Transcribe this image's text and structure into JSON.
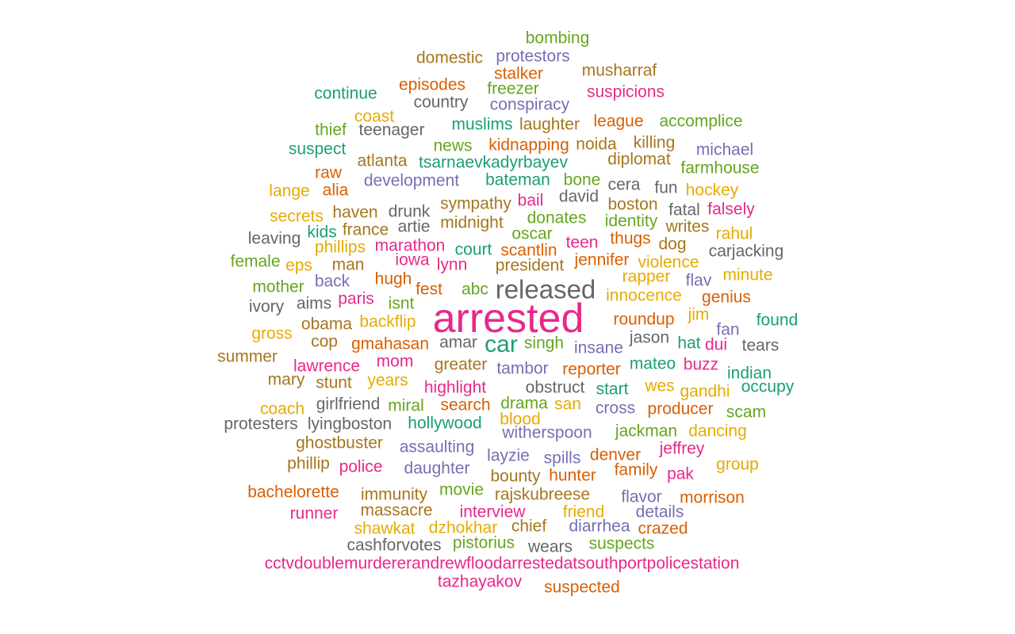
{
  "palette": {
    "teal": "#1b9e77",
    "orange": "#d95f02",
    "purple": "#7570b3",
    "magenta": "#e7298a",
    "green": "#66a61e",
    "mustard": "#e6ab02",
    "brown": "#a6761d",
    "gray": "#666666"
  },
  "words": [
    {
      "text": "arrested",
      "color": "magenta"
    },
    {
      "text": "released",
      "color": "gray"
    },
    {
      "text": "car",
      "color": "teal"
    },
    {
      "text": "bombing",
      "color": "green"
    },
    {
      "text": "domestic",
      "color": "brown"
    },
    {
      "text": "protestors",
      "color": "purple"
    },
    {
      "text": "musharraf",
      "color": "brown"
    },
    {
      "text": "stalker",
      "color": "orange"
    },
    {
      "text": "episodes",
      "color": "orange"
    },
    {
      "text": "freezer",
      "color": "green"
    },
    {
      "text": "suspicions",
      "color": "magenta"
    },
    {
      "text": "continue",
      "color": "teal"
    },
    {
      "text": "country",
      "color": "gray"
    },
    {
      "text": "conspiracy",
      "color": "purple"
    },
    {
      "text": "coast",
      "color": "mustard"
    },
    {
      "text": "league",
      "color": "orange"
    },
    {
      "text": "accomplice",
      "color": "green"
    },
    {
      "text": "thief",
      "color": "green"
    },
    {
      "text": "teenager",
      "color": "gray"
    },
    {
      "text": "muslims",
      "color": "teal"
    },
    {
      "text": "laughter",
      "color": "brown"
    },
    {
      "text": "suspect",
      "color": "teal"
    },
    {
      "text": "news",
      "color": "green"
    },
    {
      "text": "kidnapping",
      "color": "orange"
    },
    {
      "text": "noida",
      "color": "brown"
    },
    {
      "text": "killing",
      "color": "brown"
    },
    {
      "text": "michael",
      "color": "purple"
    },
    {
      "text": "raw",
      "color": "orange"
    },
    {
      "text": "atlanta",
      "color": "brown"
    },
    {
      "text": "tsarnaevkadyrbayev",
      "color": "teal"
    },
    {
      "text": "diplomat",
      "color": "brown"
    },
    {
      "text": "farmhouse",
      "color": "green"
    },
    {
      "text": "lange",
      "color": "mustard"
    },
    {
      "text": "alia",
      "color": "orange"
    },
    {
      "text": "development",
      "color": "purple"
    },
    {
      "text": "bateman",
      "color": "teal"
    },
    {
      "text": "bone",
      "color": "green"
    },
    {
      "text": "cera",
      "color": "gray"
    },
    {
      "text": "fun",
      "color": "gray"
    },
    {
      "text": "hockey",
      "color": "mustard"
    },
    {
      "text": "david",
      "color": "gray"
    },
    {
      "text": "secrets",
      "color": "mustard"
    },
    {
      "text": "haven",
      "color": "brown"
    },
    {
      "text": "drunk",
      "color": "gray"
    },
    {
      "text": "sympathy",
      "color": "brown"
    },
    {
      "text": "bail",
      "color": "magenta"
    },
    {
      "text": "boston",
      "color": "brown"
    },
    {
      "text": "fatal",
      "color": "gray"
    },
    {
      "text": "falsely",
      "color": "magenta"
    },
    {
      "text": "kids",
      "color": "teal"
    },
    {
      "text": "france",
      "color": "brown"
    },
    {
      "text": "artie",
      "color": "gray"
    },
    {
      "text": "midnight",
      "color": "brown"
    },
    {
      "text": "donates",
      "color": "green"
    },
    {
      "text": "identity",
      "color": "green"
    },
    {
      "text": "writes",
      "color": "brown"
    },
    {
      "text": "rahul",
      "color": "mustard"
    },
    {
      "text": "leaving",
      "color": "gray"
    },
    {
      "text": "oscar",
      "color": "green"
    },
    {
      "text": "thugs",
      "color": "orange"
    },
    {
      "text": "phillips",
      "color": "mustard"
    },
    {
      "text": "marathon",
      "color": "magenta"
    },
    {
      "text": "court",
      "color": "teal"
    },
    {
      "text": "scantlin",
      "color": "orange"
    },
    {
      "text": "teen",
      "color": "magenta"
    },
    {
      "text": "dog",
      "color": "brown"
    },
    {
      "text": "carjacking",
      "color": "gray"
    },
    {
      "text": "female",
      "color": "green"
    },
    {
      "text": "eps",
      "color": "mustard"
    },
    {
      "text": "man",
      "color": "brown"
    },
    {
      "text": "iowa",
      "color": "magenta"
    },
    {
      "text": "lynn",
      "color": "magenta"
    },
    {
      "text": "president",
      "color": "brown"
    },
    {
      "text": "jennifer",
      "color": "orange"
    },
    {
      "text": "violence",
      "color": "mustard"
    },
    {
      "text": "rapper",
      "color": "mustard"
    },
    {
      "text": "flav",
      "color": "purple"
    },
    {
      "text": "minute",
      "color": "mustard"
    },
    {
      "text": "mother",
      "color": "green"
    },
    {
      "text": "back",
      "color": "purple"
    },
    {
      "text": "hugh",
      "color": "orange"
    },
    {
      "text": "fest",
      "color": "orange"
    },
    {
      "text": "abc",
      "color": "green"
    },
    {
      "text": "innocence",
      "color": "mustard"
    },
    {
      "text": "genius",
      "color": "orange"
    },
    {
      "text": "ivory",
      "color": "gray"
    },
    {
      "text": "aims",
      "color": "gray"
    },
    {
      "text": "paris",
      "color": "magenta"
    },
    {
      "text": "isnt",
      "color": "green"
    },
    {
      "text": "jim",
      "color": "mustard"
    },
    {
      "text": "found",
      "color": "teal"
    },
    {
      "text": "roundup",
      "color": "orange"
    },
    {
      "text": "fan",
      "color": "purple"
    },
    {
      "text": "gross",
      "color": "mustard"
    },
    {
      "text": "obama",
      "color": "brown"
    },
    {
      "text": "backflip",
      "color": "mustard"
    },
    {
      "text": "jason",
      "color": "gray"
    },
    {
      "text": "cop",
      "color": "brown"
    },
    {
      "text": "gmahasan",
      "color": "orange"
    },
    {
      "text": "amar",
      "color": "gray"
    },
    {
      "text": "singh",
      "color": "green"
    },
    {
      "text": "insane",
      "color": "purple"
    },
    {
      "text": "hat",
      "color": "teal"
    },
    {
      "text": "dui",
      "color": "magenta"
    },
    {
      "text": "tears",
      "color": "gray"
    },
    {
      "text": "summer",
      "color": "brown"
    },
    {
      "text": "lawrence",
      "color": "magenta"
    },
    {
      "text": "mom",
      "color": "magenta"
    },
    {
      "text": "greater",
      "color": "brown"
    },
    {
      "text": "tambor",
      "color": "purple"
    },
    {
      "text": "reporter",
      "color": "orange"
    },
    {
      "text": "mateo",
      "color": "teal"
    },
    {
      "text": "buzz",
      "color": "magenta"
    },
    {
      "text": "indian",
      "color": "teal"
    },
    {
      "text": "mary",
      "color": "brown"
    },
    {
      "text": "stunt",
      "color": "brown"
    },
    {
      "text": "years",
      "color": "mustard"
    },
    {
      "text": "highlight",
      "color": "magenta"
    },
    {
      "text": "obstruct",
      "color": "gray"
    },
    {
      "text": "start",
      "color": "teal"
    },
    {
      "text": "wes",
      "color": "mustard"
    },
    {
      "text": "gandhi",
      "color": "mustard"
    },
    {
      "text": "occupy",
      "color": "teal"
    },
    {
      "text": "coach",
      "color": "mustard"
    },
    {
      "text": "girlfriend",
      "color": "gray"
    },
    {
      "text": "miral",
      "color": "green"
    },
    {
      "text": "search",
      "color": "orange"
    },
    {
      "text": "drama",
      "color": "green"
    },
    {
      "text": "san",
      "color": "mustard"
    },
    {
      "text": "cross",
      "color": "purple"
    },
    {
      "text": "producer",
      "color": "orange"
    },
    {
      "text": "scam",
      "color": "green"
    },
    {
      "text": "protesters",
      "color": "gray"
    },
    {
      "text": "lyingboston",
      "color": "gray"
    },
    {
      "text": "hollywood",
      "color": "teal"
    },
    {
      "text": "blood",
      "color": "mustard"
    },
    {
      "text": "witherspoon",
      "color": "purple"
    },
    {
      "text": "jackman",
      "color": "green"
    },
    {
      "text": "dancing",
      "color": "mustard"
    },
    {
      "text": "ghostbuster",
      "color": "brown"
    },
    {
      "text": "assaulting",
      "color": "purple"
    },
    {
      "text": "jeffrey",
      "color": "magenta"
    },
    {
      "text": "phillip",
      "color": "brown"
    },
    {
      "text": "police",
      "color": "magenta"
    },
    {
      "text": "daughter",
      "color": "purple"
    },
    {
      "text": "layzie",
      "color": "purple"
    },
    {
      "text": "spills",
      "color": "purple"
    },
    {
      "text": "denver",
      "color": "orange"
    },
    {
      "text": "group",
      "color": "mustard"
    },
    {
      "text": "bounty",
      "color": "brown"
    },
    {
      "text": "hunter",
      "color": "orange"
    },
    {
      "text": "family",
      "color": "orange"
    },
    {
      "text": "pak",
      "color": "magenta"
    },
    {
      "text": "bachelorette",
      "color": "orange"
    },
    {
      "text": "immunity",
      "color": "brown"
    },
    {
      "text": "movie",
      "color": "green"
    },
    {
      "text": "rajskubreese",
      "color": "brown"
    },
    {
      "text": "flavor",
      "color": "purple"
    },
    {
      "text": "morrison",
      "color": "orange"
    },
    {
      "text": "runner",
      "color": "magenta"
    },
    {
      "text": "massacre",
      "color": "brown"
    },
    {
      "text": "interview",
      "color": "magenta"
    },
    {
      "text": "friend",
      "color": "mustard"
    },
    {
      "text": "details",
      "color": "purple"
    },
    {
      "text": "shawkat",
      "color": "mustard"
    },
    {
      "text": "dzhokhar",
      "color": "mustard"
    },
    {
      "text": "chief",
      "color": "brown"
    },
    {
      "text": "diarrhea",
      "color": "purple"
    },
    {
      "text": "crazed",
      "color": "orange"
    },
    {
      "text": "cashforvotes",
      "color": "gray"
    },
    {
      "text": "pistorius",
      "color": "green"
    },
    {
      "text": "wears",
      "color": "gray"
    },
    {
      "text": "suspects",
      "color": "green"
    },
    {
      "text": "cctvdoublemurdererandrewfloodarrestedatsouthportpolicestation",
      "color": "magenta"
    },
    {
      "text": "tazhayakov",
      "color": "magenta"
    },
    {
      "text": "suspected",
      "color": "orange"
    }
  ]
}
